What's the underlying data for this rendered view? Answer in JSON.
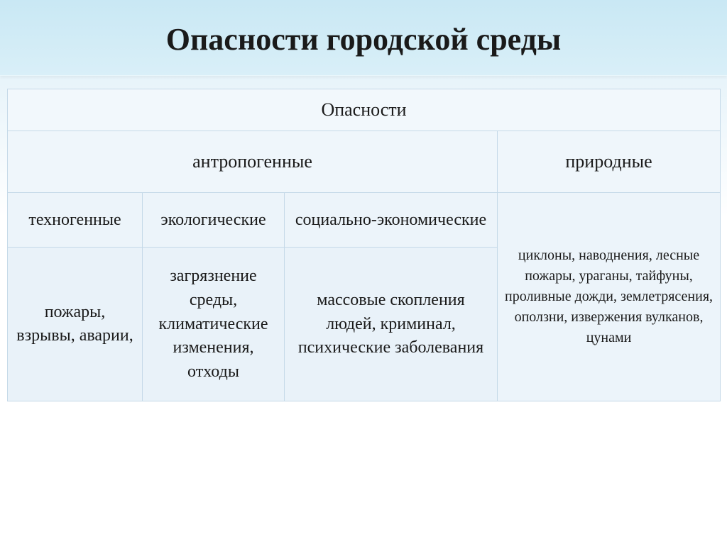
{
  "title": "Опасности городской среды",
  "table": {
    "header_main": "Опасности",
    "cat_anthro": "антропогенные",
    "cat_natural": "природные",
    "sub": {
      "techno": "техногенные",
      "eco": "экологические",
      "socio": "социально-экономические"
    },
    "body": {
      "techno": "пожары, взрывы, аварии,",
      "eco": "загрязнение среды, климатические изменения, отходы",
      "socio": "массовые скопления людей, криминал, психические заболевания",
      "natural": "циклоны, наводнения, лесные пожары, ураганы, тайфуны, проливные дожди, землетрясения, оползни, извержения вулканов, цунами"
    }
  },
  "colors": {
    "bg_top": "#c9e8f4",
    "bg_bottom": "#ffffff",
    "cell_border": "#c5d9e8",
    "text": "#1a1a1a"
  },
  "fonts": {
    "title_size": 44,
    "header_size": 26,
    "body_size": 24,
    "natural_size": 20
  }
}
